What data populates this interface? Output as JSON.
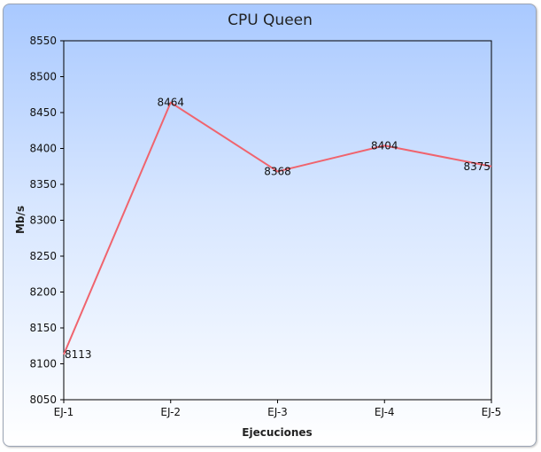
{
  "chart_data": {
    "type": "line",
    "title": "CPU Queen",
    "xlabel": "Ejecuciones",
    "ylabel": "Mb/s",
    "categories": [
      "EJ-1",
      "EJ-2",
      "EJ-3",
      "EJ-4",
      "EJ-5"
    ],
    "series": [
      {
        "values": [
          8113,
          8464,
          8368,
          8404,
          8375
        ],
        "color": "#f0646e"
      }
    ],
    "ylim": [
      8050,
      8550
    ],
    "yticks": [
      8050,
      8100,
      8150,
      8200,
      8250,
      8300,
      8350,
      8400,
      8450,
      8500,
      8550
    ],
    "grid": false,
    "legend": "none",
    "background_gradient": [
      "#a9c9ff",
      "#ffffff"
    ]
  }
}
